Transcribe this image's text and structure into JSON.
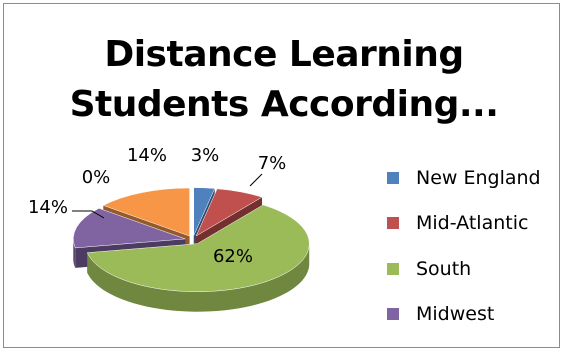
{
  "chart_data": {
    "type": "pie",
    "style": "3d-exploded",
    "title": "Distance Learning Students According...",
    "title_lines": [
      "Distance Learning",
      "Students According..."
    ],
    "categories": [
      "New England",
      "Mid-Atlantic",
      "South",
      "Midwest",
      "",
      "",
      ""
    ],
    "values": [
      3,
      7,
      62,
      14,
      0,
      0,
      14
    ],
    "value_labels": [
      "3%",
      "7%",
      "62%",
      "14%",
      "0%",
      "",
      "14%"
    ],
    "colors": [
      "#4f81bd",
      "#c0504d",
      "#9bbb59",
      "#8064a2",
      "#4bacc6",
      "#1f497d",
      "#f79646"
    ],
    "legend": {
      "placement": "right",
      "entries": [
        {
          "label": "New England",
          "color": "#4f81bd"
        },
        {
          "label": "Mid-Atlantic",
          "color": "#c0504d"
        },
        {
          "label": "South",
          "color": "#9bbb59"
        },
        {
          "label": "Midwest",
          "color": "#8064a2"
        }
      ]
    }
  }
}
